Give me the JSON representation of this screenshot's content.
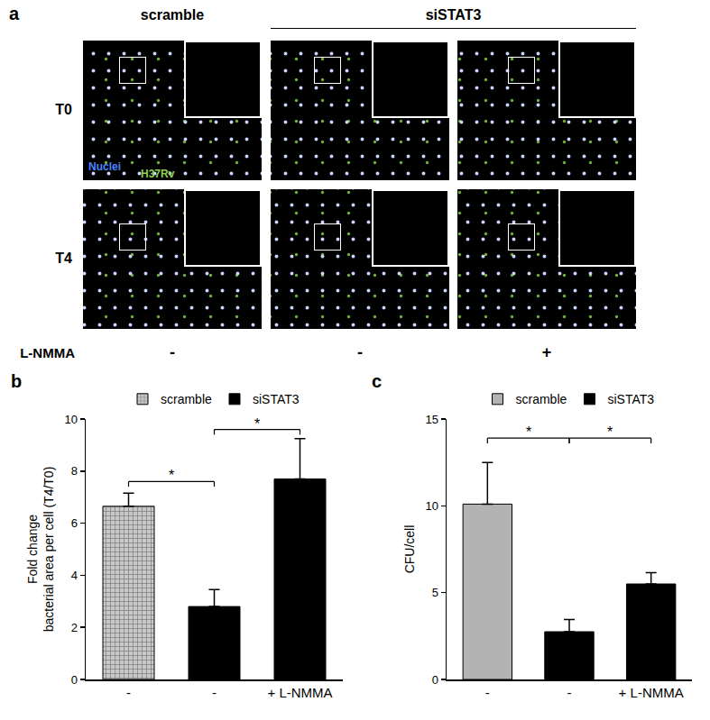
{
  "panel_a": {
    "label": "a",
    "headers": [
      {
        "text": "scramble",
        "columns": [
          0,
          0
        ]
      },
      {
        "text": "siSTAT3",
        "columns": [
          1,
          2
        ]
      }
    ],
    "rows": [
      "T0",
      "T4"
    ],
    "legend": [
      {
        "text": "Nuclei",
        "color": "#4a86ff"
      },
      {
        "text": "H37Rv",
        "color": "#8fd14f"
      }
    ],
    "treatment": {
      "name": "L-NMMA",
      "marks": [
        "-",
        "-",
        "+"
      ]
    }
  },
  "chart_data": [
    {
      "label": "b",
      "type": "bar",
      "ylabel": "Fold change\nbacterial area per cell (T4/T0)",
      "categories": [
        "-",
        "-",
        "+ L-NMMA"
      ],
      "series": [
        {
          "name": "scramble",
          "color": "#c8c8c8",
          "marker": "hatched",
          "values": [
            6.65,
            null,
            null
          ],
          "errors": [
            0.5,
            null,
            null
          ]
        },
        {
          "name": "siSTAT3",
          "color": "#000000",
          "values": [
            null,
            2.8,
            7.7
          ],
          "errors": [
            null,
            0.65,
            1.55
          ]
        }
      ],
      "ylim": [
        0,
        10
      ],
      "yticks": [
        0,
        2,
        4,
        6,
        8,
        10
      ],
      "grid": false,
      "legend": "top",
      "significance": [
        {
          "text": "*",
          "from": 0,
          "to": 1,
          "y": 7.6
        },
        {
          "text": "*",
          "from": 1,
          "to": 2,
          "y": 9.6
        }
      ]
    },
    {
      "label": "c",
      "type": "bar",
      "ylabel": "CFU/cell",
      "categories": [
        "-",
        "-",
        "+ L-NMMA"
      ],
      "series": [
        {
          "name": "scramble",
          "color": "#b3b3b3",
          "values": [
            10.1,
            null,
            null
          ],
          "errors": [
            2.4,
            null,
            null
          ]
        },
        {
          "name": "siSTAT3",
          "color": "#000000",
          "values": [
            null,
            2.75,
            5.5
          ],
          "errors": [
            null,
            0.7,
            0.65
          ]
        }
      ],
      "ylim": [
        0,
        15
      ],
      "yticks": [
        0,
        5,
        10,
        15
      ],
      "grid": false,
      "legend": "top",
      "significance": [
        {
          "text": "*",
          "from": 0,
          "to": 1,
          "y": 13.9
        },
        {
          "text": "*",
          "from": 1,
          "to": 2,
          "y": 13.9
        }
      ]
    }
  ]
}
